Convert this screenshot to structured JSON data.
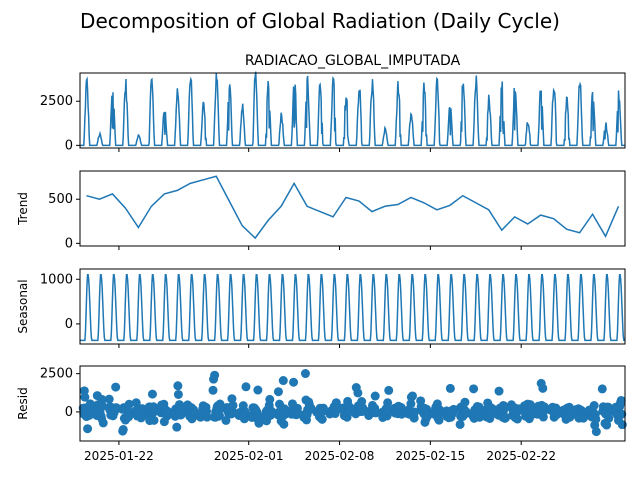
{
  "figure": {
    "suptitle": "Decomposition of Global Radiation (Daily Cycle)"
  },
  "chart_data": [
    {
      "panel": "observed",
      "type": "line",
      "title": "RADIACAO_GLOBAL_IMPUTADA",
      "ylabel": "",
      "x_range": [
        "2025-01-19",
        "2025-03-02"
      ],
      "ylim": [
        -150,
        4100
      ],
      "yticks": [
        0,
        2500
      ],
      "description_of_values": "hourly global radiation, zero at night, daily peaks between about 400 and 3800",
      "daily_peaks": [
        3500,
        600,
        3300,
        3400,
        600,
        3600,
        2100,
        3200,
        3700,
        2300,
        3800,
        3500,
        2100,
        3700,
        3400,
        1700,
        3900,
        3700,
        3400,
        3600,
        2800,
        3200,
        3500,
        900,
        3300,
        1700,
        3500,
        3400,
        2100,
        3800,
        3600,
        2600,
        3700,
        3300,
        1300,
        3200,
        3500,
        2400,
        3400,
        3100,
        1200,
        2800,
        3300,
        2000,
        1000,
        3100,
        600,
        3300,
        3600
      ],
      "color": "#1f77b4"
    },
    {
      "panel": "trend",
      "type": "line",
      "ylabel": "Trend",
      "ylim": [
        -30,
        820
      ],
      "yticks": [
        0,
        500
      ],
      "x": [
        "2025-01-19",
        "2025-01-20",
        "2025-01-21",
        "2025-01-22",
        "2025-01-23",
        "2025-01-24",
        "2025-01-25",
        "2025-01-26",
        "2025-01-27",
        "2025-01-28",
        "2025-01-29",
        "2025-01-30",
        "2025-01-31",
        "2025-02-01",
        "2025-02-02",
        "2025-02-03",
        "2025-02-04",
        "2025-02-05",
        "2025-02-06",
        "2025-02-07",
        "2025-02-08",
        "2025-02-09",
        "2025-02-10",
        "2025-02-11",
        "2025-02-12",
        "2025-02-13",
        "2025-02-14",
        "2025-02-15",
        "2025-02-16",
        "2025-02-17",
        "2025-02-18",
        "2025-02-19",
        "2025-02-20",
        "2025-02-21",
        "2025-02-22",
        "2025-02-23",
        "2025-02-24",
        "2025-02-25",
        "2025-02-26",
        "2025-02-27",
        "2025-02-28",
        "2025-03-01"
      ],
      "values": [
        540,
        500,
        560,
        400,
        180,
        420,
        560,
        600,
        680,
        720,
        760,
        480,
        200,
        60,
        260,
        420,
        680,
        420,
        360,
        300,
        520,
        480,
        360,
        420,
        440,
        520,
        460,
        380,
        430,
        540,
        460,
        380,
        150,
        300,
        220,
        320,
        280,
        160,
        120,
        330,
        80,
        420
      ],
      "color": "#1f77b4"
    },
    {
      "panel": "seasonal",
      "type": "line",
      "ylabel": "Seasonal",
      "ylim": [
        -450,
        1230
      ],
      "yticks": [
        0,
        1000
      ],
      "period": "1 day",
      "daily_profile": [
        -370,
        -370,
        -370,
        -370,
        -370,
        -370,
        -370,
        -370,
        -370,
        -370,
        -200,
        150,
        550,
        900,
        1100,
        1100,
        1000,
        800,
        500,
        200,
        -100,
        -300,
        -370,
        -370
      ],
      "color": "#1f77b4"
    },
    {
      "panel": "resid",
      "type": "scatter",
      "ylabel": "Resid",
      "ylim": [
        -1900,
        3000
      ],
      "yticks": [
        0,
        2500
      ],
      "description_of_values": "residuals clustered between about -1500 and 2700, mostly near 0",
      "color": "#1f77b4"
    }
  ],
  "xaxis": {
    "tick_labels": [
      "2025-01-22",
      "2025-02-01",
      "2025-02-08",
      "2025-02-15",
      "2025-02-22"
    ]
  }
}
